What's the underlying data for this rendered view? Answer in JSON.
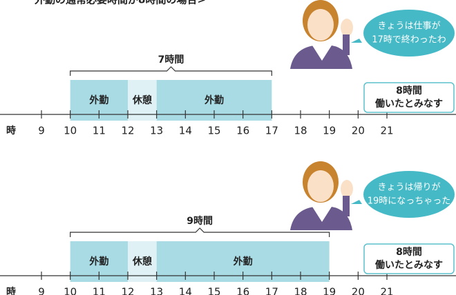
{
  "title": "外勤の通常必要時間が8時間の場合>",
  "axis": {
    "unit": "時",
    "hours": [
      9,
      10,
      11,
      12,
      13,
      14,
      15,
      16,
      17,
      18,
      19,
      20,
      21
    ]
  },
  "panels": [
    {
      "bracket_label": "7時間",
      "bracket": {
        "from": 10,
        "to": 17
      },
      "segments": [
        {
          "label": "外勤",
          "from": 10,
          "to": 12,
          "kind": "work"
        },
        {
          "label": "休憩",
          "from": 12,
          "to": 13,
          "kind": "break"
        },
        {
          "label": "外勤",
          "from": 13,
          "to": 17,
          "kind": "work"
        }
      ],
      "bubble": [
        "きょうは仕事が",
        "17時で終わったわ"
      ],
      "result": [
        "8時間",
        "働いたとみなす"
      ]
    },
    {
      "bracket_label": "9時間",
      "bracket": {
        "from": 10,
        "to": 19
      },
      "segments": [
        {
          "label": "外勤",
          "from": 10,
          "to": 12,
          "kind": "work"
        },
        {
          "label": "休憩",
          "from": 12,
          "to": 13,
          "kind": "break"
        },
        {
          "label": "外勤",
          "from": 13,
          "to": 19,
          "kind": "work"
        }
      ],
      "bubble": [
        "きょうは帰りが",
        "19時になっちゃった"
      ],
      "result": [
        "8時間",
        "働いたとみなす"
      ]
    }
  ]
}
